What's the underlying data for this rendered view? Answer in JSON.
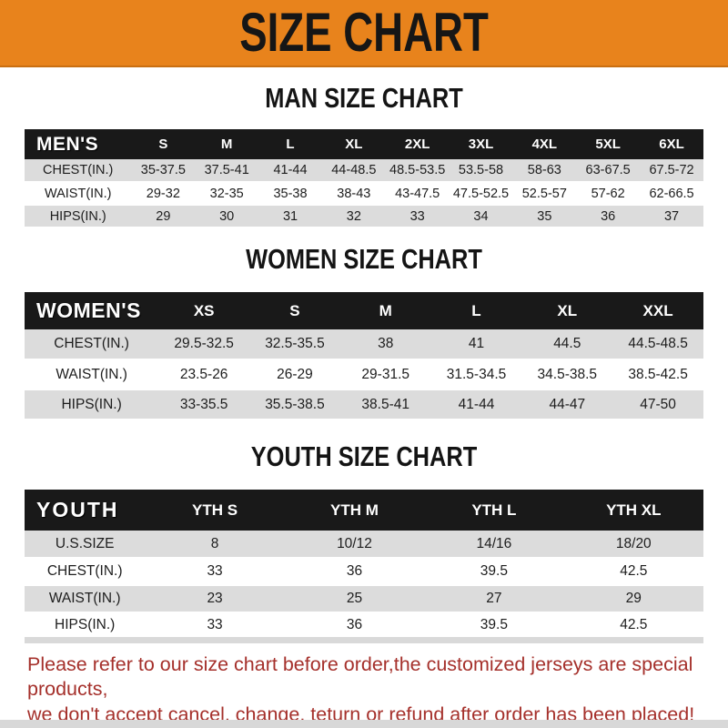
{
  "banner": {
    "title": "SIZE CHART"
  },
  "colors": {
    "banner_bg": "#E8831C",
    "table_header_bg": "#191919",
    "row_alt_bg": "#DCDCDC",
    "footer_text": "#A5302B"
  },
  "sections": [
    {
      "id": "men",
      "title": "MAN SIZE CHART",
      "table": {
        "corner_label": "MEN'S",
        "columns": [
          "S",
          "M",
          "L",
          "XL",
          "2XL",
          "3XL",
          "4XL",
          "5XL",
          "6XL"
        ],
        "rows": [
          {
            "label": "CHEST(IN.)",
            "values": [
              "35-37.5",
              "37.5-41",
              "41-44",
              "44-48.5",
              "48.5-53.5",
              "53.5-58",
              "58-63",
              "63-67.5",
              "67.5-72"
            ]
          },
          {
            "label": "WAIST(IN.)",
            "values": [
              "29-32",
              "32-35",
              "35-38",
              "38-43",
              "43-47.5",
              "47.5-52.5",
              "52.5-57",
              "57-62",
              "62-66.5"
            ]
          },
          {
            "label": "HIPS(IN.)",
            "values": [
              "29",
              "30",
              "31",
              "32",
              "33",
              "34",
              "35",
              "36",
              "37"
            ]
          }
        ]
      }
    },
    {
      "id": "women",
      "title": "WOMEN SIZE CHART",
      "table": {
        "corner_label": "WOMEN'S",
        "columns": [
          "XS",
          "S",
          "M",
          "L",
          "XL",
          "XXL"
        ],
        "rows": [
          {
            "label": "CHEST(IN.)",
            "values": [
              "29.5-32.5",
              "32.5-35.5",
              "38",
              "41",
              "44.5",
              "44.5-48.5"
            ]
          },
          {
            "label": "WAIST(IN.)",
            "values": [
              "23.5-26",
              "26-29",
              "29-31.5",
              "31.5-34.5",
              "34.5-38.5",
              "38.5-42.5"
            ]
          },
          {
            "label": "HIPS(IN.)",
            "values": [
              "33-35.5",
              "35.5-38.5",
              "38.5-41",
              "41-44",
              "44-47",
              "47-50"
            ]
          }
        ]
      }
    },
    {
      "id": "youth",
      "title": "YOUTH SIZE CHART",
      "table": {
        "corner_label": "YOUTH",
        "columns": [
          "YTH S",
          "YTH M",
          "YTH L",
          "YTH XL"
        ],
        "rows": [
          {
            "label": "U.S.SIZE",
            "values": [
              "8",
              "10/12",
              "14/16",
              "18/20"
            ]
          },
          {
            "label": "CHEST(IN.)",
            "values": [
              "33",
              "36",
              "39.5",
              "42.5"
            ]
          },
          {
            "label": "WAIST(IN.)",
            "values": [
              "23",
              "25",
              "27",
              "29"
            ]
          },
          {
            "label": "HIPS(IN.)",
            "values": [
              "33",
              "36",
              "39.5",
              "42.5"
            ]
          }
        ]
      }
    }
  ],
  "footer": {
    "line1": "Please refer to our size chart before order,the customized jerseys are special products,",
    "line2": "we don't accept cancel, change, teturn or refund after order has been placed!"
  }
}
